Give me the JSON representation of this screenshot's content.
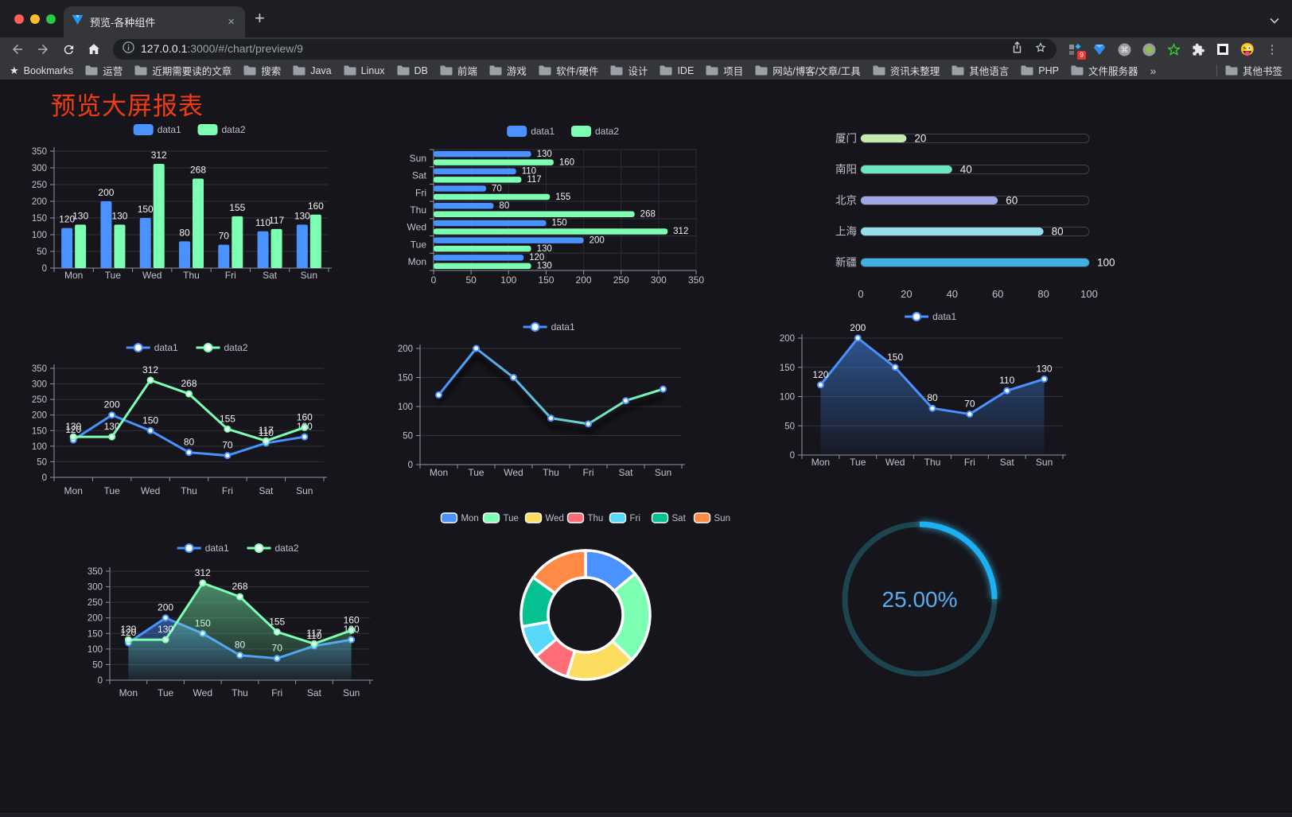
{
  "browser": {
    "tab": {
      "title": "预览-各种组件"
    },
    "address": {
      "host": "127.0.0.1",
      "path": ":3000/#/chart/preview/9"
    },
    "extensions_badge": "9",
    "bookmarks_bar": {
      "label": "Bookmarks",
      "folders": [
        "运营",
        "近期需要读的文章",
        "搜索",
        "Java",
        "Linux",
        "DB",
        "前端",
        "游戏",
        "软件/硬件",
        "设计",
        "IDE",
        "项目",
        "网站/博客/文章/工具",
        "资讯未整理",
        "其他语言",
        "PHP",
        "文件服务器"
      ],
      "overflow": "»",
      "other": "其他书签"
    }
  },
  "page": {
    "title": "预览大屏报表",
    "title_color": "#f23c12",
    "background": "#15151b"
  },
  "chart_data": [
    {
      "id": "bar-vertical",
      "type": "bar",
      "orientation": "vertical",
      "categories": [
        "Mon",
        "Tue",
        "Wed",
        "Thu",
        "Fri",
        "Sat",
        "Sun"
      ],
      "series": [
        {
          "name": "data1",
          "color": "#4992ff",
          "values": [
            120,
            200,
            150,
            80,
            70,
            110,
            130
          ]
        },
        {
          "name": "data2",
          "color": "#7cffb2",
          "values": [
            130,
            130,
            312,
            268,
            155,
            117,
            160
          ]
        }
      ],
      "ylim": [
        0,
        350
      ],
      "ytick": 50,
      "value_labels": true,
      "legend_position": "top",
      "grid": true
    },
    {
      "id": "bar-horizontal",
      "type": "bar",
      "orientation": "horizontal",
      "categories": [
        "Mon",
        "Tue",
        "Wed",
        "Thu",
        "Fri",
        "Sat",
        "Sun"
      ],
      "category_display_order": "Sun at top, Mon at bottom",
      "series": [
        {
          "name": "data1",
          "color": "#4992ff",
          "values": [
            120,
            200,
            150,
            80,
            70,
            110,
            130
          ]
        },
        {
          "name": "data2",
          "color": "#7cffb2",
          "values": [
            130,
            130,
            312,
            268,
            155,
            117,
            160
          ]
        }
      ],
      "xlim": [
        0,
        350
      ],
      "xtick": 50,
      "value_labels": true,
      "legend_position": "top",
      "grid": true
    },
    {
      "id": "progress-bars",
      "type": "bar",
      "subtype": "progress",
      "categories": [
        "厦门",
        "南阳",
        "北京",
        "上海",
        "新疆"
      ],
      "values": [
        20,
        40,
        60,
        80,
        100
      ],
      "colors": [
        "#c4ebad",
        "#6be6c1",
        "#a0a7e6",
        "#96dee8",
        "#3fb1e3"
      ],
      "xlim": [
        0,
        100
      ],
      "xticks": [
        0,
        20,
        40,
        60,
        80,
        100
      ],
      "value_labels": true
    },
    {
      "id": "line-two-series",
      "type": "line",
      "categories": [
        "Mon",
        "Tue",
        "Wed",
        "Thu",
        "Fri",
        "Sat",
        "Sun"
      ],
      "series": [
        {
          "name": "data1",
          "color": "#4992ff",
          "values": [
            120,
            200,
            150,
            80,
            70,
            110,
            130
          ]
        },
        {
          "name": "data2",
          "color": "#7cffb2",
          "values": [
            130,
            130,
            312,
            268,
            155,
            117,
            160
          ]
        }
      ],
      "ylim": [
        0,
        350
      ],
      "ytick": 50,
      "value_labels": true,
      "markers": true,
      "legend_position": "top"
    },
    {
      "id": "line-gradient",
      "type": "line",
      "categories": [
        "Mon",
        "Tue",
        "Wed",
        "Thu",
        "Fri",
        "Sat",
        "Sun"
      ],
      "series": [
        {
          "name": "data1",
          "gradient": [
            "#4992ff",
            "#7cffb2"
          ],
          "values": [
            120,
            200,
            150,
            80,
            70,
            110,
            130
          ]
        }
      ],
      "ylim": [
        0,
        200
      ],
      "ytick": 50,
      "value_labels": false,
      "markers": true,
      "shadow": true,
      "legend_position": "top"
    },
    {
      "id": "area-single",
      "type": "area",
      "categories": [
        "Mon",
        "Tue",
        "Wed",
        "Thu",
        "Fri",
        "Sat",
        "Sun"
      ],
      "series": [
        {
          "name": "data1",
          "color": "#4992ff",
          "values": [
            120,
            200,
            150,
            80,
            70,
            110,
            130
          ]
        }
      ],
      "ylim": [
        0,
        200
      ],
      "ytick": 50,
      "value_labels": true,
      "markers": true,
      "legend_position": "top"
    },
    {
      "id": "area-two-series",
      "type": "area",
      "categories": [
        "Mon",
        "Tue",
        "Wed",
        "Thu",
        "Fri",
        "Sat",
        "Sun"
      ],
      "series": [
        {
          "name": "data1",
          "color": "#4992ff",
          "values": [
            120,
            200,
            150,
            80,
            70,
            110,
            130
          ]
        },
        {
          "name": "data2",
          "color": "#7cffb2",
          "values": [
            130,
            130,
            312,
            268,
            155,
            117,
            160
          ]
        }
      ],
      "ylim": [
        0,
        350
      ],
      "ytick": 50,
      "value_labels": true,
      "markers": true,
      "legend_position": "top"
    },
    {
      "id": "donut",
      "type": "pie",
      "inner_radius_ratio": 0.58,
      "categories": [
        "Mon",
        "Tue",
        "Wed",
        "Thu",
        "Fri",
        "Sat",
        "Sun"
      ],
      "values": [
        120,
        200,
        150,
        80,
        70,
        110,
        130
      ],
      "colors": [
        "#4992ff",
        "#7cffb2",
        "#fddd60",
        "#ff6e76",
        "#58d9f9",
        "#05c091",
        "#ff8a45"
      ],
      "border_color": "#ffffff",
      "legend_position": "top"
    },
    {
      "id": "gauge",
      "type": "gauge",
      "value": 25,
      "max": 100,
      "display": "25.00%",
      "progress_color": "#1fb0f5",
      "track_color": "#1d4550",
      "text_color": "#55aef2"
    }
  ]
}
